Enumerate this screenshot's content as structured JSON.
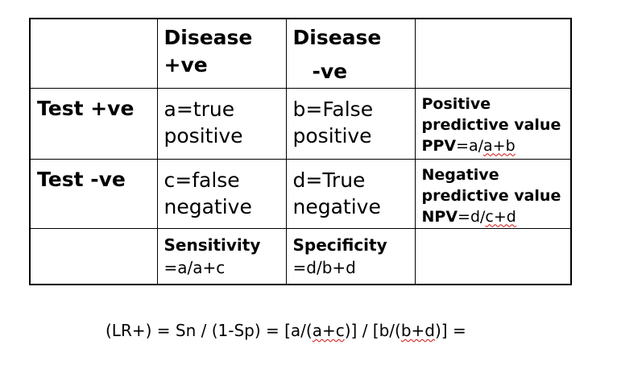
{
  "header": {
    "disease_pos": {
      "line1": "Disease",
      "line2": "+ve"
    },
    "disease_neg": {
      "line1": "Disease",
      "line2": "-ve"
    }
  },
  "rows": [
    {
      "label": "Test +ve",
      "cells": [
        {
          "line1": "a=true",
          "line2": "positive"
        },
        {
          "line1": "b=False",
          "line2": "positive"
        }
      ],
      "predictive": {
        "line1": "Positive",
        "line2": "predictive value",
        "abbr": "PPV",
        "eq": "=a/",
        "tail": "a+b"
      }
    },
    {
      "label": "Test -ve",
      "cells": [
        {
          "line1": "c=false",
          "line2": "negative"
        },
        {
          "line1": "d=True",
          "line2": "negative"
        }
      ],
      "predictive": {
        "line1": "Negative",
        "line2": "predictive value",
        "abbr": "NPV",
        "eq": "=d/",
        "tail": "c+d"
      }
    }
  ],
  "footer": {
    "sensitivity": {
      "label": "Sensitivity",
      "formula": "=a/a+c"
    },
    "specificity": {
      "label": "Specificity",
      "formula": "=d/b+d"
    }
  },
  "equation": {
    "part1": "(LR+) = Sn / (1-Sp) = [a/(",
    "term1": "a+c",
    "part2": ")] / [b/(",
    "term2": "b+d",
    "part3": ")] ="
  }
}
